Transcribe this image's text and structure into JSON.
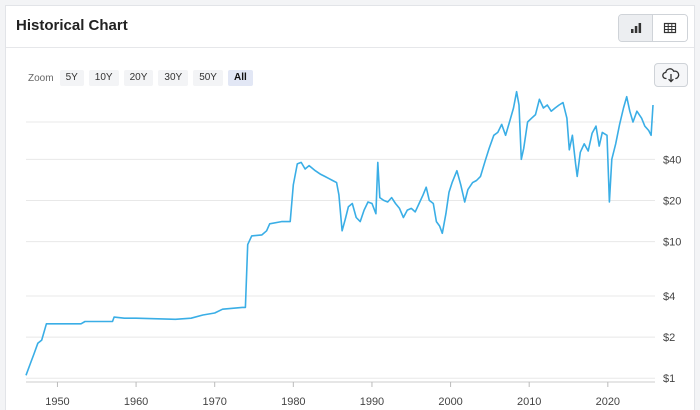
{
  "header": {
    "title": "Historical Chart"
  },
  "toolbar": {
    "view_buttons": [
      "chart-view",
      "table-view"
    ],
    "active_view": "chart-view"
  },
  "zoom": {
    "label": "Zoom",
    "options": [
      "5Y",
      "10Y",
      "20Y",
      "30Y",
      "50Y",
      "All"
    ],
    "active": "All"
  },
  "download": {
    "icon": "cloud-download-icon"
  },
  "colors": {
    "line": "#3aaee6",
    "grid": "#e8e8e8",
    "active_zoom": "#e2e7f5"
  },
  "chart_data": {
    "type": "line",
    "title": "",
    "xlabel": "",
    "ylabel": "",
    "y_scale": "log",
    "xlim": [
      1946,
      2026
    ],
    "ylim": [
      0.97,
      95
    ],
    "x_ticks": [
      1950,
      1960,
      1970,
      1980,
      1990,
      2000,
      2010,
      2020
    ],
    "y_ticks": [
      1,
      2,
      4,
      10,
      20,
      40
    ],
    "y_tick_labels": [
      "$1",
      "$2",
      "$4",
      "$10",
      "$20",
      "$40"
    ],
    "extra_gridlines": [
      75
    ],
    "grid": true,
    "legend": "none",
    "series": [
      {
        "values": [
          [
            1946.0,
            1.05
          ],
          [
            1946.6,
            1.3
          ],
          [
            1947.0,
            1.5
          ],
          [
            1947.5,
            1.8
          ],
          [
            1948.0,
            1.9
          ],
          [
            1948.6,
            2.5
          ],
          [
            1949.5,
            2.5
          ],
          [
            1950.0,
            2.5
          ],
          [
            1953.0,
            2.5
          ],
          [
            1953.5,
            2.6
          ],
          [
            1957.0,
            2.6
          ],
          [
            1957.2,
            2.8
          ],
          [
            1958.5,
            2.75
          ],
          [
            1960.0,
            2.75
          ],
          [
            1965.0,
            2.7
          ],
          [
            1967.0,
            2.75
          ],
          [
            1968.5,
            2.9
          ],
          [
            1970.0,
            3.0
          ],
          [
            1971.0,
            3.2
          ],
          [
            1973.5,
            3.3
          ],
          [
            1973.9,
            3.3
          ],
          [
            1974.2,
            9.5
          ],
          [
            1974.7,
            11.0
          ],
          [
            1976.0,
            11.2
          ],
          [
            1976.6,
            12.0
          ],
          [
            1977.0,
            13.5
          ],
          [
            1978.5,
            14.0
          ],
          [
            1979.6,
            14.0
          ],
          [
            1980.0,
            26.0
          ],
          [
            1980.5,
            37.0
          ],
          [
            1981.0,
            38.0
          ],
          [
            1981.5,
            34.0
          ],
          [
            1982.0,
            36.0
          ],
          [
            1982.8,
            33.0
          ],
          [
            1983.5,
            31.0
          ],
          [
            1984.0,
            30.0
          ],
          [
            1984.5,
            29.0
          ],
          [
            1985.0,
            28.0
          ],
          [
            1985.5,
            27.0
          ],
          [
            1985.8,
            22.0
          ],
          [
            1986.2,
            12.0
          ],
          [
            1986.6,
            14.5
          ],
          [
            1987.0,
            18.0
          ],
          [
            1987.5,
            19.0
          ],
          [
            1988.0,
            15.0
          ],
          [
            1988.5,
            14.0
          ],
          [
            1989.0,
            17.0
          ],
          [
            1989.5,
            19.5
          ],
          [
            1990.0,
            19.0
          ],
          [
            1990.5,
            16.0
          ],
          [
            1990.75,
            38.0
          ],
          [
            1991.0,
            21.0
          ],
          [
            1991.5,
            20.0
          ],
          [
            1992.0,
            19.5
          ],
          [
            1992.5,
            21.0
          ],
          [
            1993.0,
            19.0
          ],
          [
            1993.5,
            17.5
          ],
          [
            1994.0,
            15.0
          ],
          [
            1994.5,
            17.0
          ],
          [
            1995.0,
            17.5
          ],
          [
            1995.5,
            16.5
          ],
          [
            1996.0,
            19.0
          ],
          [
            1996.5,
            22.0
          ],
          [
            1996.9,
            25.0
          ],
          [
            1997.3,
            20.0
          ],
          [
            1997.8,
            19.0
          ],
          [
            1998.2,
            14.0
          ],
          [
            1998.6,
            13.0
          ],
          [
            1998.95,
            11.5
          ],
          [
            1999.4,
            16.0
          ],
          [
            1999.8,
            23.0
          ],
          [
            2000.2,
            27.0
          ],
          [
            2000.8,
            33.0
          ],
          [
            2001.3,
            26.0
          ],
          [
            2001.8,
            19.5
          ],
          [
            2002.2,
            24.0
          ],
          [
            2002.8,
            27.0
          ],
          [
            2003.3,
            28.0
          ],
          [
            2003.8,
            30.0
          ],
          [
            2004.4,
            39.0
          ],
          [
            2004.9,
            48.0
          ],
          [
            2005.5,
            60.0
          ],
          [
            2006.0,
            63.0
          ],
          [
            2006.5,
            72.0
          ],
          [
            2007.0,
            60.0
          ],
          [
            2007.5,
            75.0
          ],
          [
            2008.0,
            95.0
          ],
          [
            2008.4,
            125.0
          ],
          [
            2008.7,
            100.0
          ],
          [
            2009.0,
            40.0
          ],
          [
            2009.3,
            48.0
          ],
          [
            2009.8,
            75.0
          ],
          [
            2010.3,
            80.0
          ],
          [
            2010.8,
            85.0
          ],
          [
            2011.3,
            110.0
          ],
          [
            2011.8,
            95.0
          ],
          [
            2012.3,
            100.0
          ],
          [
            2012.8,
            90.0
          ],
          [
            2013.3,
            95.0
          ],
          [
            2013.8,
            100.0
          ],
          [
            2014.3,
            104.0
          ],
          [
            2014.8,
            80.0
          ],
          [
            2015.1,
            47.0
          ],
          [
            2015.5,
            60.0
          ],
          [
            2015.9,
            37.0
          ],
          [
            2016.1,
            30.0
          ],
          [
            2016.5,
            45.0
          ],
          [
            2017.0,
            52.0
          ],
          [
            2017.5,
            46.0
          ],
          [
            2018.0,
            62.0
          ],
          [
            2018.5,
            70.0
          ],
          [
            2018.9,
            50.0
          ],
          [
            2019.3,
            63.0
          ],
          [
            2019.9,
            60.0
          ],
          [
            2020.2,
            19.5
          ],
          [
            2020.5,
            40.0
          ],
          [
            2021.0,
            52.0
          ],
          [
            2021.5,
            72.0
          ],
          [
            2022.0,
            95.0
          ],
          [
            2022.4,
            115.0
          ],
          [
            2022.8,
            90.0
          ],
          [
            2023.2,
            75.0
          ],
          [
            2023.7,
            90.0
          ],
          [
            2024.3,
            80.0
          ],
          [
            2024.7,
            70.0
          ],
          [
            2025.2,
            65.0
          ],
          [
            2025.5,
            60.0
          ],
          [
            2025.75,
            100.0
          ]
        ]
      }
    ]
  }
}
